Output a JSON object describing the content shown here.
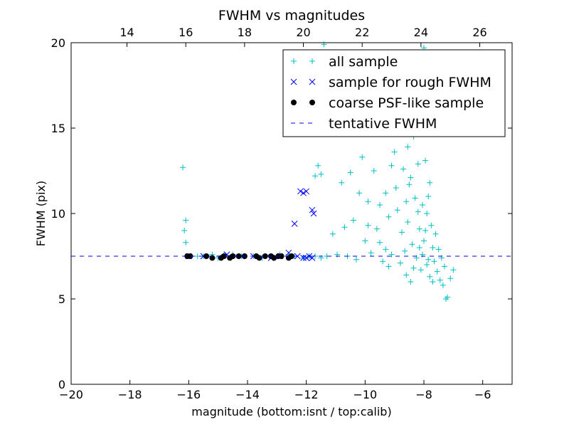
{
  "chart_data": {
    "type": "scatter",
    "title": "FWHM vs magnitudes",
    "xlabel": "magnitude (bottom:isnt / top:calib)",
    "ylabel": "FWHM (pix)",
    "xlim": [
      -20,
      -5
    ],
    "ylim": [
      0,
      20
    ],
    "top_axis_offset": 32.1,
    "x_ticks": [
      -20,
      -18,
      -16,
      -14,
      -12,
      -10,
      -8,
      -6
    ],
    "x_tick_labels": [
      "−20",
      "−18",
      "−16",
      "−14",
      "−12",
      "−10",
      "−8",
      "−6"
    ],
    "y_ticks": [
      0,
      5,
      10,
      15,
      20
    ],
    "y_tick_labels": [
      "0",
      "5",
      "10",
      "15",
      "20"
    ],
    "top_ticks": [
      14,
      16,
      18,
      20,
      22,
      24,
      26
    ],
    "top_tick_labels": [
      "14",
      "16",
      "18",
      "20",
      "22",
      "24",
      "26"
    ],
    "grid": false,
    "legend_position": "top-right",
    "colors": {
      "all": "#00bfbf",
      "rough": "#0000ff",
      "coarse": "#000000",
      "tentative": "#0000ff"
    },
    "tentative_fwhm": 7.5,
    "series": [
      {
        "name": "all sample",
        "marker": "plus",
        "color": "#00bfbf",
        "points": [
          [
            -16.2,
            12.7
          ],
          [
            -16.1,
            9.6
          ],
          [
            -16.15,
            9.0
          ],
          [
            -16.1,
            8.3
          ],
          [
            -16.0,
            7.5
          ],
          [
            -15.7,
            7.5
          ],
          [
            -15.5,
            7.5
          ],
          [
            -15.2,
            7.6
          ],
          [
            -15.0,
            7.4
          ],
          [
            -14.8,
            7.6
          ],
          [
            -14.5,
            7.6
          ],
          [
            -14.2,
            7.5
          ],
          [
            -13.8,
            7.5
          ],
          [
            -13.5,
            7.4
          ],
          [
            -13.2,
            7.5
          ],
          [
            -12.9,
            7.6
          ],
          [
            -12.6,
            7.6
          ],
          [
            -12.4,
            7.5
          ],
          [
            -12.1,
            7.4
          ],
          [
            -11.9,
            7.5
          ],
          [
            -11.7,
            7.5
          ],
          [
            -11.5,
            7.4
          ],
          [
            -11.3,
            7.5
          ],
          [
            -11.5,
            12.3
          ],
          [
            -11.1,
            8.8
          ],
          [
            -11.4,
            19.9
          ],
          [
            -11.7,
            12.2
          ],
          [
            -11.6,
            12.8
          ],
          [
            -10.95,
            7.6
          ],
          [
            -10.8,
            11.8
          ],
          [
            -10.5,
            12.4
          ],
          [
            -10.6,
            7.5
          ],
          [
            -10.4,
            9.6
          ],
          [
            -10.2,
            11.2
          ],
          [
            -10.3,
            7.3
          ],
          [
            -10.1,
            13.3
          ],
          [
            -10.0,
            8.4
          ],
          [
            -9.9,
            10.7
          ],
          [
            -9.8,
            7.7
          ],
          [
            -9.7,
            12.5
          ],
          [
            -9.6,
            9.1
          ],
          [
            -9.5,
            8.3
          ],
          [
            -9.4,
            7.2
          ],
          [
            -9.3,
            11.2
          ],
          [
            -9.2,
            9.8
          ],
          [
            -9.1,
            7.6
          ],
          [
            -9.0,
            13.6
          ],
          [
            -8.9,
            10.2
          ],
          [
            -8.8,
            7.1
          ],
          [
            -8.75,
            8.9
          ],
          [
            -8.7,
            12.6
          ],
          [
            -8.6,
            6.4
          ],
          [
            -8.55,
            9.5
          ],
          [
            -8.5,
            11.7
          ],
          [
            -8.45,
            6.0
          ],
          [
            -8.4,
            8.2
          ],
          [
            -8.35,
            14.5
          ],
          [
            -8.3,
            10.9
          ],
          [
            -8.25,
            7.4
          ],
          [
            -8.2,
            12.9
          ],
          [
            -8.15,
            9.1
          ],
          [
            -8.1,
            6.7
          ],
          [
            -8.05,
            10.5
          ],
          [
            -8.0,
            19.7
          ],
          [
            -8.0,
            8.4
          ],
          [
            -7.95,
            13.1
          ],
          [
            -7.9,
            7.0
          ],
          [
            -7.85,
            11.0
          ],
          [
            -7.8,
            6.3
          ],
          [
            -7.75,
            9.3
          ],
          [
            -7.7,
            8.0
          ],
          [
            -7.65,
            7.2
          ],
          [
            -7.6,
            8.8
          ],
          [
            -7.55,
            6.6
          ],
          [
            -7.5,
            7.9
          ],
          [
            -7.45,
            6.1
          ],
          [
            -7.4,
            7.4
          ],
          [
            -7.35,
            5.8
          ],
          [
            -7.3,
            6.9
          ],
          [
            -7.25,
            5.0
          ],
          [
            -7.2,
            5.1
          ],
          [
            -7.1,
            6.2
          ],
          [
            -7.0,
            6.7
          ],
          [
            -9.9,
            9.3
          ],
          [
            -9.5,
            10.5
          ],
          [
            -9.2,
            6.9
          ],
          [
            -8.95,
            11.5
          ],
          [
            -8.65,
            7.8
          ],
          [
            -8.55,
            13.9
          ],
          [
            -8.35,
            6.8
          ],
          [
            -8.2,
            10.1
          ],
          [
            -8.05,
            7.6
          ],
          [
            -7.95,
            9.0
          ],
          [
            -7.8,
            11.8
          ],
          [
            -7.7,
            6.0
          ],
          [
            -8.9,
            14.8
          ],
          [
            -9.3,
            7.9
          ],
          [
            -10.7,
            9.2
          ],
          [
            -8.45,
            12.1
          ],
          [
            -8.15,
            8.0
          ],
          [
            -7.9,
            10.0
          ],
          [
            -7.85,
            7.3
          ],
          [
            -8.6,
            10.7
          ],
          [
            -9.1,
            12.8
          ]
        ]
      },
      {
        "name": "sample for rough FWHM",
        "marker": "x",
        "color": "#0000ff",
        "points": [
          [
            -16.0,
            7.5
          ],
          [
            -15.5,
            7.5
          ],
          [
            -14.7,
            7.6
          ],
          [
            -14.2,
            7.5
          ],
          [
            -13.8,
            7.5
          ],
          [
            -13.2,
            7.4
          ],
          [
            -12.9,
            7.5
          ],
          [
            -12.6,
            7.7
          ],
          [
            -12.4,
            9.4
          ],
          [
            -12.2,
            11.3
          ],
          [
            -12.1,
            11.2
          ],
          [
            -12.0,
            11.3
          ],
          [
            -11.8,
            10.2
          ],
          [
            -11.75,
            10.0
          ],
          [
            -12.3,
            7.5
          ],
          [
            -12.1,
            7.4
          ],
          [
            -12.0,
            7.4
          ],
          [
            -11.9,
            7.5
          ],
          [
            -11.8,
            7.4
          ]
        ]
      },
      {
        "name": "coarse PSF-like sample",
        "marker": "circle",
        "color": "#000000",
        "points": [
          [
            -16.05,
            7.5
          ],
          [
            -15.95,
            7.5
          ],
          [
            -15.4,
            7.5
          ],
          [
            -15.2,
            7.4
          ],
          [
            -14.9,
            7.4
          ],
          [
            -14.8,
            7.5
          ],
          [
            -14.6,
            7.4
          ],
          [
            -14.5,
            7.5
          ],
          [
            -14.3,
            7.5
          ],
          [
            -14.1,
            7.5
          ],
          [
            -13.7,
            7.5
          ],
          [
            -13.6,
            7.4
          ],
          [
            -13.4,
            7.5
          ],
          [
            -13.2,
            7.5
          ],
          [
            -13.1,
            7.4
          ],
          [
            -12.95,
            7.5
          ],
          [
            -12.85,
            7.5
          ],
          [
            -12.6,
            7.4
          ],
          [
            -12.5,
            7.5
          ]
        ]
      },
      {
        "name": "tentative FWHM",
        "marker": "dashed-line",
        "color": "#0000ff"
      }
    ]
  }
}
